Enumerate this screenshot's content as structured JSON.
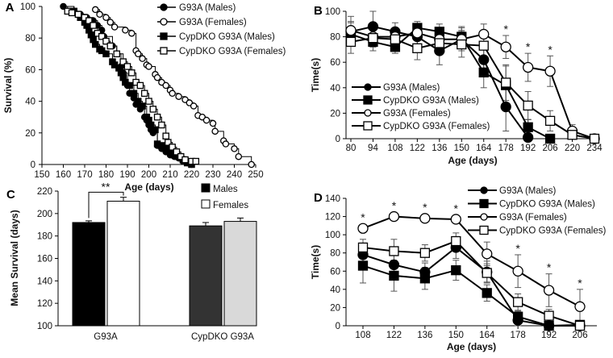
{
  "chart_data": [
    {
      "panel": "A",
      "type": "line",
      "subtype": "kaplan-meier",
      "xlabel": "Age (days)",
      "ylabel": "Survival (%)",
      "xlim": [
        150,
        250
      ],
      "ylim": [
        0,
        100
      ],
      "xticks": [
        150,
        160,
        170,
        180,
        190,
        200,
        210,
        220,
        230,
        240,
        250
      ],
      "yticks": [
        0,
        20,
        40,
        60,
        80,
        100
      ],
      "legend_position": "top-right",
      "series": [
        {
          "name": "G93A (Males)",
          "marker": "filled-circle",
          "points": [
            [
              160,
              100
            ],
            [
              165,
              97
            ],
            [
              168,
              95
            ],
            [
              171,
              93
            ],
            [
              174,
              91
            ],
            [
              176,
              88
            ],
            [
              178,
              85
            ],
            [
              179,
              81
            ],
            [
              183,
              75
            ],
            [
              185,
              70
            ],
            [
              187,
              62
            ],
            [
              188,
              58
            ],
            [
              190,
              50
            ],
            [
              191,
              45
            ],
            [
              193,
              42
            ],
            [
              194,
              38
            ],
            [
              196,
              35
            ],
            [
              198,
              30
            ],
            [
              199,
              28
            ],
            [
              200,
              25
            ],
            [
              201,
              22
            ],
            [
              202,
              20
            ],
            [
              204,
              12
            ],
            [
              206,
              10
            ],
            [
              208,
              8
            ],
            [
              210,
              6
            ],
            [
              212,
              5
            ],
            [
              214,
              4
            ],
            [
              216,
              2
            ],
            [
              218,
              1
            ],
            [
              220,
              0
            ]
          ]
        },
        {
          "name": "G93A (Females)",
          "marker": "open-circle",
          "points": [
            [
              175,
              98
            ],
            [
              177,
              95
            ],
            [
              180,
              93
            ],
            [
              182,
              90
            ],
            [
              184,
              87
            ],
            [
              189,
              85
            ],
            [
              192,
              83
            ],
            [
              194,
              72
            ],
            [
              195,
              70
            ],
            [
              197,
              67
            ],
            [
              199,
              63
            ],
            [
              200,
              62
            ],
            [
              203,
              57
            ],
            [
              204,
              55
            ],
            [
              206,
              52
            ],
            [
              208,
              50
            ],
            [
              210,
              47
            ],
            [
              211,
              45
            ],
            [
              214,
              43
            ],
            [
              217,
              41
            ],
            [
              219,
              39
            ],
            [
              221,
              37
            ],
            [
              223,
              31
            ],
            [
              225,
              30
            ],
            [
              227,
              28
            ],
            [
              230,
              26
            ],
            [
              231,
              21
            ],
            [
              235,
              15
            ],
            [
              236,
              13
            ],
            [
              240,
              10
            ],
            [
              242,
              5
            ],
            [
              248,
              0
            ]
          ]
        },
        {
          "name": "CypDKO G93A (Males)",
          "marker": "filled-square",
          "points": [
            [
              165,
              97
            ],
            [
              167,
              95
            ],
            [
              168,
              93
            ],
            [
              170,
              90
            ],
            [
              171,
              88
            ],
            [
              172,
              85
            ],
            [
              173,
              82
            ],
            [
              174,
              79
            ],
            [
              175,
              76
            ],
            [
              177,
              73
            ],
            [
              178,
              72
            ],
            [
              180,
              70
            ],
            [
              183,
              65
            ],
            [
              184,
              63
            ],
            [
              186,
              61
            ],
            [
              187,
              58
            ],
            [
              188,
              55
            ],
            [
              189,
              52
            ],
            [
              191,
              50
            ],
            [
              193,
              45
            ],
            [
              195,
              40
            ],
            [
              197,
              37
            ],
            [
              199,
              30
            ],
            [
              200,
              28
            ],
            [
              201,
              25
            ],
            [
              203,
              22
            ],
            [
              204,
              13
            ],
            [
              206,
              12
            ],
            [
              208,
              10
            ],
            [
              210,
              8
            ],
            [
              212,
              6
            ],
            [
              214,
              5
            ],
            [
              216,
              3
            ],
            [
              218,
              1
            ],
            [
              220,
              0
            ]
          ]
        },
        {
          "name": "CypDKO G93A (Females)",
          "marker": "open-square",
          "points": [
            [
              162,
              97
            ],
            [
              164,
              96
            ],
            [
              167,
              95
            ],
            [
              170,
              93
            ],
            [
              172,
              91
            ],
            [
              174,
              88
            ],
            [
              176,
              83
            ],
            [
              178,
              81
            ],
            [
              180,
              78
            ],
            [
              182,
              75
            ],
            [
              185,
              70
            ],
            [
              188,
              65
            ],
            [
              190,
              62
            ],
            [
              192,
              58
            ],
            [
              194,
              52
            ],
            [
              196,
              50
            ],
            [
              198,
              45
            ],
            [
              200,
              40
            ],
            [
              202,
              35
            ],
            [
              204,
              30
            ],
            [
              206,
              25
            ],
            [
              208,
              18
            ],
            [
              209,
              14
            ],
            [
              211,
              11
            ],
            [
              213,
              8
            ],
            [
              215,
              5
            ],
            [
              217,
              3
            ],
            [
              220,
              2
            ],
            [
              222,
              2
            ]
          ]
        }
      ]
    },
    {
      "panel": "B",
      "type": "line",
      "xlabel": "Age (days)",
      "ylabel": "Time(s)",
      "categories": [
        "80",
        "94",
        "108",
        "122",
        "136",
        "150",
        "164",
        "178",
        "192",
        "206",
        "220",
        "234"
      ],
      "ylim": [
        0,
        100
      ],
      "yticks": [
        0,
        20,
        40,
        60,
        80,
        100
      ],
      "legend_position": "bottom-left",
      "significance": {
        "symbol": "*",
        "at": [
          "178",
          "192",
          "206"
        ]
      },
      "series": [
        {
          "name": "G93A (Males)",
          "marker": "filled-circle",
          "values": [
            84,
            88,
            84,
            80,
            69,
            78,
            62,
            25,
            1,
            null,
            null,
            null
          ],
          "err": [
            8,
            12,
            7,
            8,
            11,
            9,
            10,
            19,
            14,
            null,
            null,
            null
          ]
        },
        {
          "name": "CypDKO G93A (Males)",
          "marker": "filled-square",
          "values": [
            82,
            76,
            72,
            87,
            84,
            80,
            52,
            42,
            9,
            0,
            null,
            null
          ],
          "err": [
            9,
            7,
            5,
            5,
            6,
            8,
            12,
            15,
            6,
            0,
            null,
            null
          ]
        },
        {
          "name": "G93A (Females)",
          "marker": "open-circle",
          "values": [
            85,
            80,
            80,
            83,
            78,
            78,
            82,
            72,
            56,
            53,
            6,
            0
          ],
          "err": [
            11,
            8,
            6,
            6,
            7,
            7,
            8,
            9,
            11,
            12,
            5,
            0
          ]
        },
        {
          "name": "CypDKO G93A (Females)",
          "marker": "open-square",
          "values": [
            76,
            79,
            78,
            71,
            75,
            74,
            73,
            44,
            26,
            14,
            3,
            0
          ],
          "err": [
            9,
            7,
            6,
            9,
            8,
            10,
            9,
            14,
            11,
            8,
            3,
            0
          ]
        }
      ]
    },
    {
      "panel": "C",
      "type": "bar",
      "xlabel": "",
      "ylabel": "Mean Survival (days)",
      "categories": [
        "G93A",
        "CypDKO G93A"
      ],
      "ylim": [
        100,
        220
      ],
      "yticks": [
        100,
        120,
        140,
        160,
        180,
        200,
        220
      ],
      "legend_position": "top-right",
      "significance": {
        "symbol": "**",
        "between": [
          "G93A Males",
          "G93A Females"
        ]
      },
      "series": [
        {
          "name": "Males",
          "color": "#000000",
          "values": [
            192,
            189
          ],
          "err": [
            1.5,
            3
          ]
        },
        {
          "name": "Females",
          "color": "#ffffff",
          "values": [
            211,
            193
          ],
          "err": [
            3.5,
            3
          ]
        }
      ],
      "bar_colors": {
        "G93A": [
          "#000000",
          "#ffffff"
        ],
        "CypDKO G93A": [
          "#333333",
          "#d9d9d9"
        ]
      }
    },
    {
      "panel": "D",
      "type": "line",
      "xlabel": "Age (days)",
      "ylabel": "Time(s)",
      "categories": [
        "108",
        "122",
        "136",
        "150",
        "164",
        "178",
        "192",
        "206"
      ],
      "ylim": [
        0,
        140
      ],
      "yticks": [
        0,
        20,
        40,
        60,
        80,
        100,
        120,
        140
      ],
      "legend_position": "top-right",
      "significance": {
        "symbol": "*",
        "at": [
          "108",
          "122",
          "136",
          "150",
          "178",
          "192",
          "206"
        ]
      },
      "series": [
        {
          "name": "G93A (Males)",
          "marker": "filled-circle",
          "values": [
            78,
            67,
            59,
            86,
            59,
            6,
            0,
            0
          ],
          "err": [
            10,
            10,
            10,
            12,
            12,
            8,
            0,
            0
          ]
        },
        {
          "name": "CypDKO G93A (Males)",
          "marker": "filled-square",
          "values": [
            66,
            55,
            52,
            61,
            36,
            10,
            0,
            1
          ],
          "err": [
            19,
            17,
            12,
            11,
            9,
            6,
            0,
            1
          ]
        },
        {
          "name": "G93A (Females)",
          "marker": "open-circle",
          "values": [
            107,
            120,
            118,
            117,
            79,
            60,
            39,
            21
          ],
          "err": [
            0,
            0,
            0,
            0,
            13,
            18,
            18,
            19
          ]
        },
        {
          "name": "CypDKO G93A (Females)",
          "marker": "open-square",
          "values": [
            86,
            82,
            80,
            93,
            58,
            26,
            11,
            0
          ],
          "err": [
            9,
            13,
            9,
            9,
            10,
            9,
            7,
            0
          ]
        }
      ]
    }
  ],
  "panel_labels": [
    "A",
    "B",
    "C",
    "D"
  ]
}
